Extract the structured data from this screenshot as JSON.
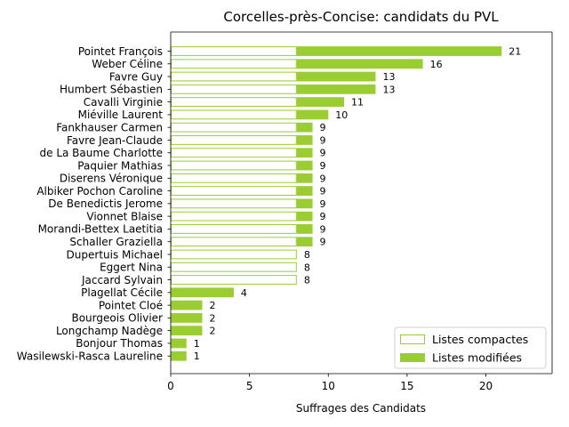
{
  "chart_data": {
    "type": "bar",
    "orientation": "horizontal",
    "stacked": true,
    "title": "Corcelles-près-Concise: candidats du PVL",
    "xlabel": "Suffrages des Candidats",
    "ylabel": "",
    "xlim": [
      0,
      24.2
    ],
    "xticks": [
      0,
      5,
      10,
      15,
      20
    ],
    "legend_position": "lower-right",
    "colors": {
      "bar": "#9acd32",
      "background": "#ffffff"
    },
    "categories": [
      "Pointet François",
      "Weber Céline",
      "Favre Guy",
      "Humbert Sébastien",
      "Cavalli Virginie",
      "Miéville Laurent",
      "Fankhauser Carmen",
      "Favre Jean-Claude",
      "de La Baume Charlotte",
      "Paquier Mathias",
      "Diserens Véronique",
      "Albiker Pochon Caroline",
      "De Benedictis Jerome",
      "Vionnet Blaise",
      "Morandi-Bettex Laetitia",
      "Schaller Graziella",
      "Dupertuis Michael",
      "Eggert Nina",
      "Jaccard Sylvain",
      "Plagellat Cécile",
      "Pointet Cloé",
      "Bourgeois Olivier",
      "Longchamp Nadège",
      "Bonjour Thomas",
      "Wasilewski-Rasca Laureline"
    ],
    "series": [
      {
        "name": "Listes compactes",
        "style": "outline",
        "values": [
          8,
          8,
          8,
          8,
          8,
          8,
          8,
          8,
          8,
          8,
          8,
          8,
          8,
          8,
          8,
          8,
          8,
          8,
          8,
          0,
          0,
          0,
          0,
          0,
          0
        ]
      },
      {
        "name": "Listes modifiées",
        "style": "filled",
        "values": [
          13,
          8,
          5,
          5,
          3,
          2,
          1,
          1,
          1,
          1,
          1,
          1,
          1,
          1,
          1,
          1,
          0,
          0,
          0,
          4,
          2,
          2,
          2,
          1,
          1
        ]
      }
    ],
    "totals": [
      21,
      16,
      13,
      13,
      11,
      10,
      9,
      9,
      9,
      9,
      9,
      9,
      9,
      9,
      9,
      9,
      8,
      8,
      8,
      4,
      2,
      2,
      2,
      1,
      1
    ]
  }
}
